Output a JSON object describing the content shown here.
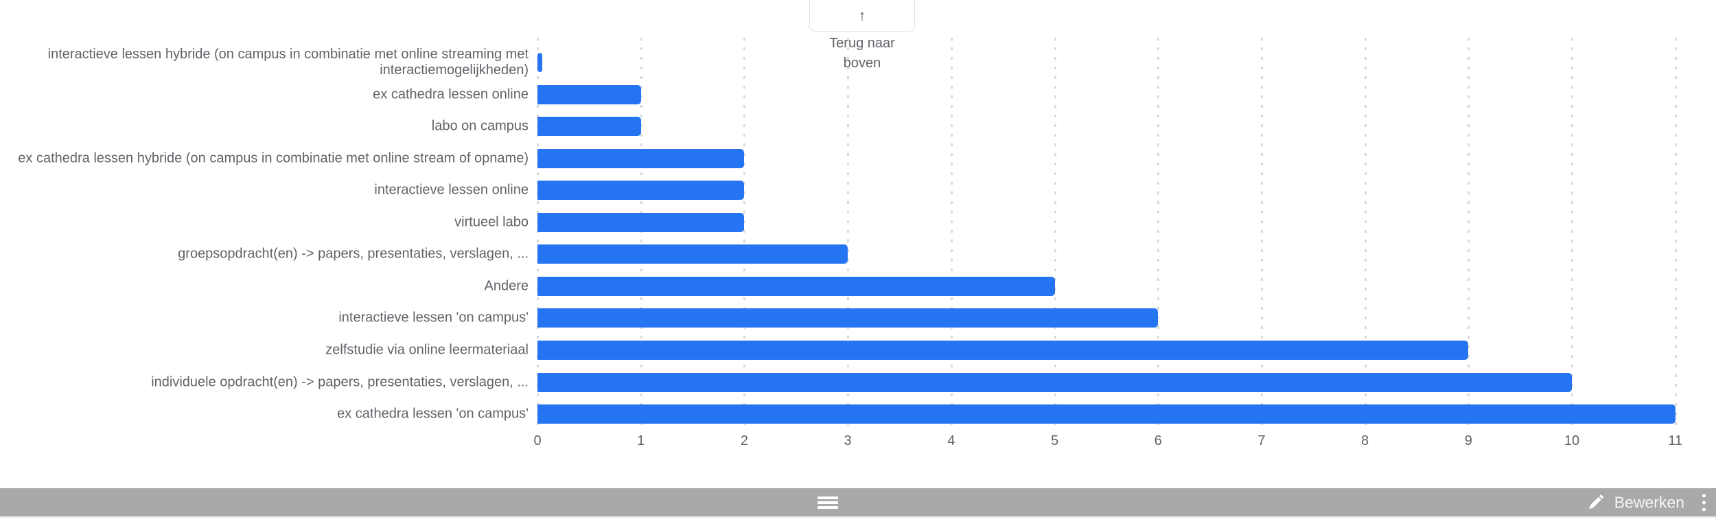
{
  "back_to_top": {
    "arrow_glyph": "↑",
    "line1": "Terug naar",
    "line2": "boven"
  },
  "chart_data": {
    "type": "bar",
    "orientation": "horizontal",
    "title": "",
    "categories": [
      "interactieve lessen hybride (on campus in combinatie met online streaming met interactiemogelijkheden)",
      "ex cathedra lessen online",
      "labo on campus",
      "ex cathedra lessen hybride (on campus in combinatie met online stream of opname)",
      "interactieve lessen online",
      "virtueel labo",
      "groepsopdracht(en) -> papers, presentaties, verslagen, ...",
      "Andere",
      "interactieve lessen 'on campus'",
      "zelfstudie via online leermateriaal",
      "individuele opdracht(en) -> papers, presentaties, verslagen, ...",
      "ex cathedra lessen 'on campus'"
    ],
    "values": [
      0,
      1,
      1,
      2,
      2,
      2,
      3,
      5,
      6,
      9,
      10,
      11
    ],
    "xlim": [
      0,
      11
    ],
    "x_ticks": [
      0,
      1,
      2,
      3,
      4,
      5,
      6,
      7,
      8,
      9,
      10,
      11
    ],
    "grid": "vertical-dotted",
    "legend": "none"
  },
  "toolbar": {
    "edit_label": "Bewerken"
  },
  "colors": {
    "bar": "#2575f2",
    "text_gray": "#5f6368",
    "gridline": "#d9d9d9",
    "toolbar_bg": "#a9a9a9",
    "toolbar_text": "#f7f7f7",
    "button_border": "#e2e2e2"
  }
}
